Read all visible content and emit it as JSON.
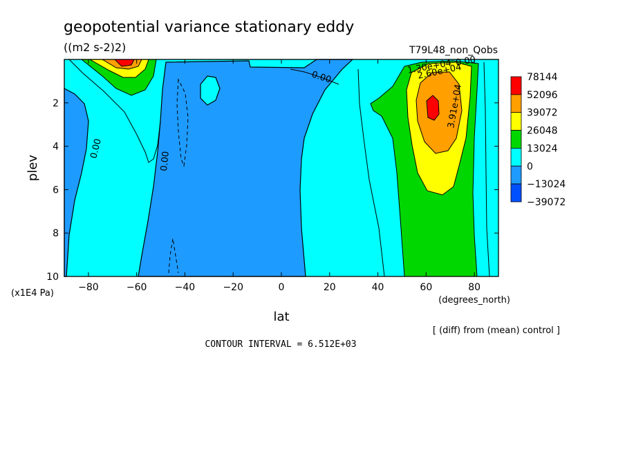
{
  "chart_data": {
    "type": "heatmap",
    "title": "geopotential variance stationary eddy",
    "subtitle": "((m2 s-2)2)",
    "experiment": "T79L48_non_Qobs",
    "xlabel": "lat",
    "xunits": "(degrees_north)",
    "ylabel": "plev",
    "yunits": "(x1E4 Pa)",
    "xlim": [
      -90,
      90
    ],
    "ylim": [
      10,
      0
    ],
    "xticks": [
      "-80",
      "-60",
      "-40",
      "-20",
      "0",
      "20",
      "40",
      "60",
      "80"
    ],
    "xtick_values": [
      -80,
      -60,
      -40,
      -20,
      0,
      20,
      40,
      60,
      80
    ],
    "yticks": [
      "2",
      "4",
      "6",
      "8",
      "10"
    ],
    "ytick_values": [
      2,
      4,
      6,
      8,
      10
    ],
    "contour_interval_label": "CONTOUR INTERVAL = 6.512E+03",
    "diff_note": "[ (diff) from (mean) control ]",
    "colorbar": {
      "labels": [
        "78144",
        "52096",
        "39072",
        "26048",
        "13024",
        "0",
        "-13024",
        "-39072"
      ],
      "colors": [
        "#ff0000",
        "#ff9f00",
        "#ffff00",
        "#00d700",
        "#00ffff",
        "#1e9bff",
        "#0050ff"
      ]
    },
    "contour_labels": [
      "0.00",
      "0.00",
      "0.00",
      "0.00",
      "1.30e+04",
      "2.60e+04",
      "3.91e+04"
    ],
    "palette": {
      "deep_blue": "#0050ff",
      "blue": "#1e9bff",
      "cyan": "#00ffff",
      "green": "#00d700",
      "yellow": "#ffff00",
      "orange": "#ff9f00",
      "red": "#ff0000"
    }
  }
}
